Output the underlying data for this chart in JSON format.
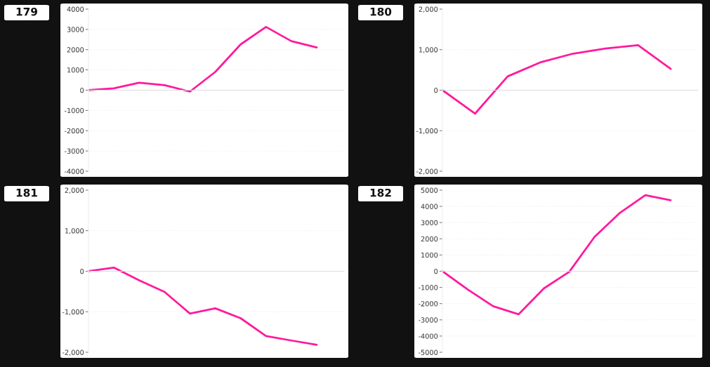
{
  "chart_data": [
    {
      "type": "line",
      "title": "179",
      "categories": [
        null,
        null,
        null,
        null,
        null,
        null,
        null,
        null,
        null,
        null
      ],
      "series": [
        {
          "color": "#ff1a9c",
          "values": [
            0,
            90,
            370,
            250,
            -70,
            900,
            2260,
            3120,
            2420,
            2110
          ]
        }
      ],
      "ylim": [
        -4000,
        4000
      ],
      "yticks": [
        -4000,
        -3000,
        -2000,
        -1000,
        0,
        1000,
        2000,
        3000,
        4000
      ],
      "grid": "y",
      "line_style": "solid"
    },
    {
      "type": "line",
      "title": "180",
      "categories": [
        null,
        null,
        null,
        null,
        null,
        null,
        null,
        null
      ],
      "series": [
        {
          "color": "#ff1a9c",
          "values": [
            0,
            -580,
            340,
            685,
            900,
            1030,
            1110,
            525
          ]
        }
      ],
      "ylim": [
        -2000,
        2000
      ],
      "yticks": [
        {
          "value": -2000,
          "label": "-2,000"
        },
        {
          "value": -1000,
          "label": "-1,000"
        },
        0,
        {
          "value": 1000,
          "label": "1,000"
        },
        {
          "value": 2000,
          "label": "2,000"
        }
      ],
      "grid": "y",
      "line_style": "solid"
    },
    {
      "type": "line",
      "title": "181",
      "categories": [
        null,
        null,
        null,
        null,
        null,
        null,
        null,
        null,
        null,
        null
      ],
      "series": [
        {
          "color": "#ff1a9c",
          "values": [
            0,
            90,
            -225,
            -510,
            -1045,
            -915,
            -1160,
            -1600,
            -1710,
            -1815
          ]
        }
      ],
      "ylim": [
        -2000,
        2000
      ],
      "yticks": [
        {
          "value": -2000,
          "label": "-2,000"
        },
        {
          "value": -1000,
          "label": "-1,000"
        },
        0,
        {
          "value": 1000,
          "label": "1,000"
        },
        {
          "value": 2000,
          "label": "2,000"
        }
      ],
      "grid": "y",
      "line_style": "solid"
    },
    {
      "type": "line",
      "title": "182",
      "categories": [
        null,
        null,
        null,
        null,
        null,
        null,
        null,
        null,
        null,
        null
      ],
      "series": [
        {
          "color": "#ff1a9c",
          "values": [
            0,
            -1130,
            -2160,
            -2660,
            -1060,
            -40,
            2120,
            3600,
            4690,
            4380
          ]
        }
      ],
      "ylim": [
        -5000,
        5000
      ],
      "yticks": [
        -5000,
        -4000,
        -3000,
        -2000,
        -1000,
        0,
        1000,
        2000,
        3000,
        4000,
        5000
      ],
      "grid": "y",
      "line_style": "solid"
    }
  ]
}
